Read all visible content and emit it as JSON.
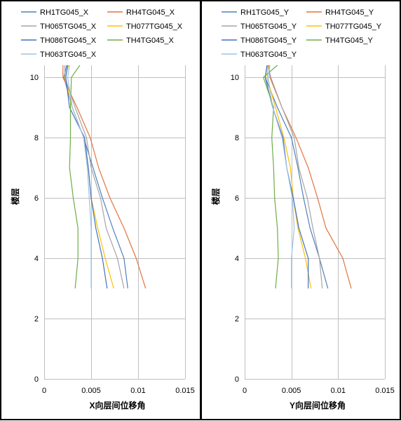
{
  "chart_data": [
    {
      "type": "line",
      "xlabel": "X向层间位移角",
      "ylabel": "楼层",
      "xlim": [
        0,
        0.015
      ],
      "ylim": [
        0,
        10.4
      ],
      "xticks": [
        "0",
        "0.005",
        "0.01",
        "0.015"
      ],
      "yticks": [
        "0",
        "2",
        "4",
        "6",
        "8",
        "10"
      ],
      "grid": true,
      "legend_position": "top",
      "series": [
        {
          "name": "RH1TG045_X",
          "color": "#4f81bd",
          "points": [
            [
              0.0089,
              3
            ],
            [
              0.0085,
              4
            ],
            [
              0.0073,
              5
            ],
            [
              0.0062,
              6
            ],
            [
              0.0052,
              7
            ],
            [
              0.0042,
              8
            ],
            [
              0.003,
              9
            ],
            [
              0.0021,
              10
            ],
            [
              0.0024,
              10.4
            ]
          ]
        },
        {
          "name": "RH4TG045_X",
          "color": "#e3743e",
          "points": [
            [
              0.0108,
              3
            ],
            [
              0.0098,
              4
            ],
            [
              0.0085,
              5
            ],
            [
              0.007,
              6
            ],
            [
              0.0058,
              7
            ],
            [
              0.0049,
              8
            ],
            [
              0.0035,
              9
            ],
            [
              0.002,
              10
            ],
            [
              0.002,
              10.4
            ]
          ]
        },
        {
          "name": "TH065TG045_X",
          "color": "#a5a5a5",
          "points": [
            [
              0.0085,
              3
            ],
            [
              0.0078,
              4
            ],
            [
              0.0066,
              5
            ],
            [
              0.006,
              6
            ],
            [
              0.005,
              7
            ],
            [
              0.0045,
              8
            ],
            [
              0.0033,
              9
            ],
            [
              0.0022,
              10
            ],
            [
              0.0022,
              10.4
            ]
          ]
        },
        {
          "name": "TH077TG045_X",
          "color": "#ffc000",
          "points": [
            [
              0.0074,
              3
            ],
            [
              0.0065,
              4
            ],
            [
              0.0057,
              5
            ],
            [
              0.005,
              6
            ],
            [
              0.0047,
              7
            ],
            [
              0.0042,
              8
            ],
            [
              0.003,
              9
            ],
            [
              0.0022,
              10
            ],
            [
              0.0026,
              10.4
            ]
          ]
        },
        {
          "name": "TH086TG045_X",
          "color": "#4472c4",
          "points": [
            [
              0.0067,
              3
            ],
            [
              0.0062,
              4
            ],
            [
              0.0055,
              5
            ],
            [
              0.005,
              6
            ],
            [
              0.0047,
              7
            ],
            [
              0.0043,
              8
            ],
            [
              0.0027,
              9
            ],
            [
              0.0023,
              10
            ],
            [
              0.0025,
              10.4
            ]
          ]
        },
        {
          "name": "TH4TG045_X",
          "color": "#70ad47",
          "points": [
            [
              0.0033,
              3
            ],
            [
              0.0036,
              4
            ],
            [
              0.0036,
              5
            ],
            [
              0.0031,
              6
            ],
            [
              0.0027,
              7
            ],
            [
              0.0028,
              8
            ],
            [
              0.0028,
              9
            ],
            [
              0.0029,
              10
            ],
            [
              0.0038,
              10.4
            ]
          ]
        },
        {
          "name": "TH063TG045_X",
          "color": "#9dc3e6",
          "points": [
            [
              0.005,
              3
            ],
            [
              0.005,
              4
            ],
            [
              0.005,
              5
            ],
            [
              0.0048,
              6
            ],
            [
              0.0046,
              7
            ],
            [
              0.0042,
              8
            ],
            [
              0.003,
              9
            ],
            [
              0.0025,
              10
            ],
            [
              0.0027,
              10.4
            ]
          ]
        }
      ]
    },
    {
      "type": "line",
      "xlabel": "Y向层间位移角",
      "ylabel": "楼层",
      "xlim": [
        0,
        0.015
      ],
      "ylim": [
        0,
        10.4
      ],
      "xticks": [
        "0",
        "0.005",
        "0.01",
        "0.015"
      ],
      "yticks": [
        "0",
        "2",
        "4",
        "6",
        "8",
        "10"
      ],
      "grid": true,
      "legend_position": "top",
      "series": [
        {
          "name": "RH1TG045_Y",
          "color": "#4f81bd",
          "points": [
            [
              0.0089,
              3
            ],
            [
              0.008,
              4
            ],
            [
              0.007,
              5
            ],
            [
              0.0063,
              6
            ],
            [
              0.0057,
              7
            ],
            [
              0.005,
              8
            ],
            [
              0.0035,
              9
            ],
            [
              0.0022,
              10
            ],
            [
              0.0024,
              10.4
            ]
          ]
        },
        {
          "name": "RH4TG045_Y",
          "color": "#e3743e",
          "points": [
            [
              0.0114,
              3
            ],
            [
              0.0105,
              4
            ],
            [
              0.0087,
              5
            ],
            [
              0.0078,
              6
            ],
            [
              0.0068,
              7
            ],
            [
              0.0055,
              8
            ],
            [
              0.004,
              9
            ],
            [
              0.0027,
              10
            ],
            [
              0.0026,
              10.4
            ]
          ]
        },
        {
          "name": "TH065TG045_Y",
          "color": "#a5a5a5",
          "points": [
            [
              0.0083,
              3
            ],
            [
              0.008,
              4
            ],
            [
              0.0073,
              5
            ],
            [
              0.0067,
              6
            ],
            [
              0.0058,
              7
            ],
            [
              0.0053,
              8
            ],
            [
              0.004,
              9
            ],
            [
              0.0028,
              10
            ],
            [
              0.0025,
              10.4
            ]
          ]
        },
        {
          "name": "TH077TG045_Y",
          "color": "#ffc000",
          "points": [
            [
              0.0071,
              3
            ],
            [
              0.0065,
              4
            ],
            [
              0.0057,
              5
            ],
            [
              0.0052,
              6
            ],
            [
              0.0049,
              7
            ],
            [
              0.0042,
              8
            ],
            [
              0.0033,
              9
            ],
            [
              0.0024,
              10
            ],
            [
              0.0025,
              10.4
            ]
          ]
        },
        {
          "name": "TH086TG045_Y",
          "color": "#4472c4",
          "points": [
            [
              0.0068,
              3
            ],
            [
              0.0068,
              4
            ],
            [
              0.0058,
              5
            ],
            [
              0.0052,
              6
            ],
            [
              0.0045,
              7
            ],
            [
              0.0041,
              8
            ],
            [
              0.003,
              9
            ],
            [
              0.0022,
              10
            ],
            [
              0.0024,
              10.4
            ]
          ]
        },
        {
          "name": "TH4TG045_Y",
          "color": "#70ad47",
          "points": [
            [
              0.0033,
              3
            ],
            [
              0.0036,
              4
            ],
            [
              0.0035,
              5
            ],
            [
              0.0032,
              6
            ],
            [
              0.0031,
              7
            ],
            [
              0.0029,
              8
            ],
            [
              0.0031,
              9
            ],
            [
              0.002,
              10
            ],
            [
              0.0035,
              10.4
            ]
          ]
        },
        {
          "name": "TH063TG045_Y",
          "color": "#9dc3e6",
          "points": [
            [
              0.005,
              3
            ],
            [
              0.005,
              4
            ],
            [
              0.0053,
              5
            ],
            [
              0.0051,
              6
            ],
            [
              0.0045,
              7
            ],
            [
              0.004,
              8
            ],
            [
              0.003,
              9
            ],
            [
              0.0025,
              10
            ],
            [
              0.0027,
              10.4
            ]
          ]
        }
      ]
    }
  ]
}
